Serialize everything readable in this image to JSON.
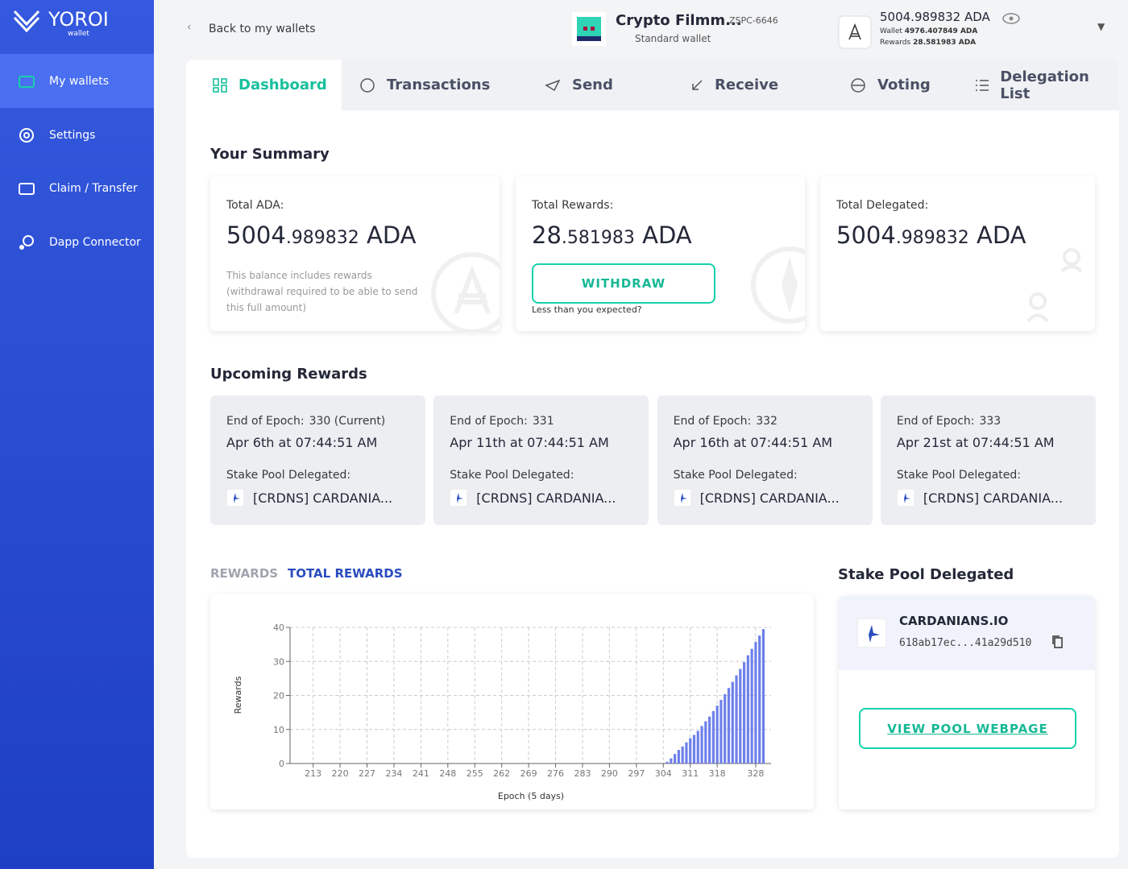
{
  "sidebar": {
    "logo": "YOROI",
    "logo_sub": "wallet",
    "items": [
      "My wallets",
      "Settings",
      "Claim / Transfer",
      "Dapp Connector"
    ]
  },
  "header": {
    "back": "Back to my wallets",
    "wallet_name": "Crypto Filmm...",
    "wallet_code": "ZSPC-6646",
    "wallet_type": "Standard wallet",
    "balance": "5004.989832 ADA",
    "wallet_label": "Wallet",
    "wallet_amount": "4976.407849 ADA",
    "rewards_label": "Rewards",
    "rewards_amount": "28.581983 ADA"
  },
  "tabs": [
    "Dashboard",
    "Transactions",
    "Send",
    "Receive",
    "Voting",
    "Delegation List"
  ],
  "summary": {
    "title": "Your Summary",
    "cards": [
      {
        "label": "Total ADA:",
        "whole": "5004",
        "fraction": ".989832",
        "unit": "ADA",
        "note": "This balance includes rewards (withdrawal required to be able to send this full amount)"
      },
      {
        "label": "Total Rewards:",
        "whole": "28",
        "fraction": ".581983",
        "unit": "ADA",
        "button": "WITHDRAW",
        "note": "Less than you expected?"
      },
      {
        "label": "Total Delegated:",
        "whole": "5004",
        "fraction": ".989832",
        "unit": "ADA"
      }
    ]
  },
  "upcoming": {
    "title": "Upcoming Rewards",
    "epoch_label": "End of Epoch:",
    "pool_label": "Stake Pool Delegated:",
    "cards": [
      {
        "epoch": "330 (Current)",
        "date": "Apr 6th at 07:44:51 AM",
        "pool": "[CRDNS] CARDANIA..."
      },
      {
        "epoch": "331",
        "date": "Apr 11th at 07:44:51 AM",
        "pool": "[CRDNS] CARDANIA..."
      },
      {
        "epoch": "332",
        "date": "Apr 16th at 07:44:51 AM",
        "pool": "[CRDNS] CARDANIA..."
      },
      {
        "epoch": "333",
        "date": "Apr 21st at 07:44:51 AM",
        "pool": "[CRDNS] CARDANIA..."
      }
    ]
  },
  "chart_tabs": [
    "REWARDS",
    "TOTAL REWARDS"
  ],
  "chart_data": {
    "type": "bar",
    "y_label": "Rewards",
    "x_label": "Epoch (5 days)",
    "color": "#6d80ea",
    "grid": true,
    "x": [
      305,
      306,
      307,
      308,
      309,
      310,
      311,
      312,
      313,
      314,
      315,
      316,
      317,
      318,
      319,
      320,
      321,
      322,
      323,
      324,
      325,
      326,
      327,
      328,
      329,
      330
    ],
    "values": [
      0.5,
      1.5,
      2.8,
      4,
      5,
      6.2,
      7.4,
      8.4,
      9.6,
      11,
      12.4,
      13.8,
      15.4,
      17,
      18.7,
      20.4,
      22.2,
      24,
      25.9,
      27.8,
      29.8,
      31.8,
      33.7,
      35.7,
      37.6,
      39.5
    ],
    "xlim": [
      207,
      332
    ],
    "xticks": [
      213,
      220,
      227,
      234,
      241,
      248,
      255,
      262,
      269,
      276,
      283,
      290,
      297,
      304,
      311,
      318,
      328
    ],
    "ylim": [
      0,
      40
    ],
    "yticks": [
      0,
      10,
      20,
      30,
      40
    ]
  },
  "pool": {
    "title": "Stake Pool Delegated",
    "name": "CARDANIANS.IO",
    "id": "618ab17ec...41a29d510",
    "button": "VIEW POOL WEBPAGE"
  }
}
